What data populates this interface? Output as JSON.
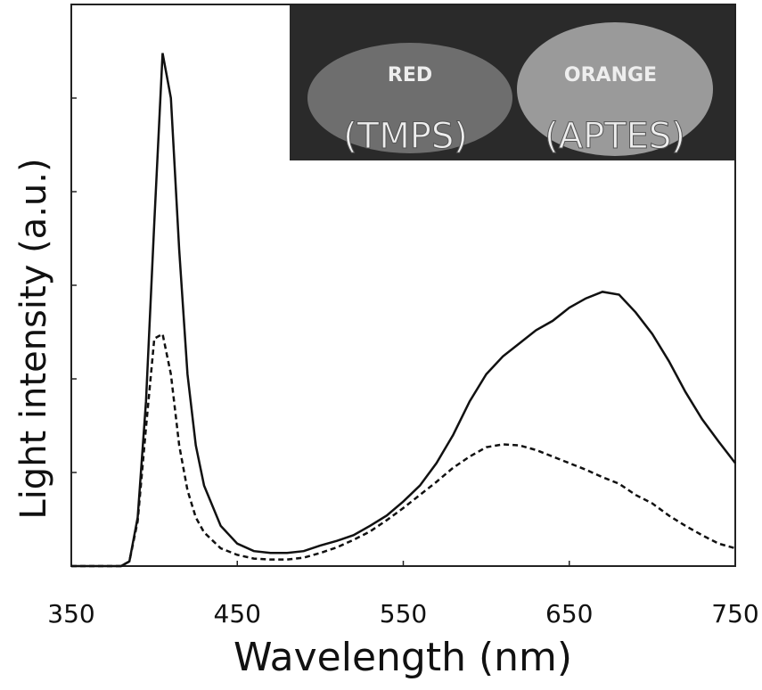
{
  "chart_data": {
    "type": "line",
    "xlabel": "Wavelength (nm)",
    "ylabel": "Light intensity (a.u.)",
    "annotations": [
      "RED",
      "(TMPS)",
      "ORANGE",
      "(APTES)"
    ],
    "x": [
      350,
      380,
      385,
      390,
      395,
      400,
      405,
      410,
      415,
      420,
      425,
      430,
      440,
      450,
      460,
      470,
      480,
      490,
      500,
      510,
      520,
      530,
      540,
      550,
      560,
      570,
      580,
      590,
      600,
      610,
      620,
      630,
      640,
      650,
      660,
      670,
      680,
      690,
      700,
      710,
      720,
      730,
      740,
      750
    ],
    "series": [
      {
        "color": "#111111",
        "dash": false,
        "values": [
          0,
          0,
          0.05,
          0.52,
          1.76,
          3.67,
          5.48,
          5.0,
          3.38,
          2.05,
          1.29,
          0.86,
          0.43,
          0.24,
          0.16,
          0.14,
          0.14,
          0.16,
          0.22,
          0.27,
          0.33,
          0.43,
          0.54,
          0.69,
          0.86,
          1.1,
          1.4,
          1.76,
          2.05,
          2.24,
          2.38,
          2.52,
          2.62,
          2.76,
          2.86,
          2.93,
          2.9,
          2.71,
          2.48,
          2.19,
          1.86,
          1.57,
          1.33,
          1.1
        ]
      },
      {
        "color": "#111111",
        "dash": true,
        "values": [
          0,
          0,
          0.05,
          0.48,
          1.48,
          2.43,
          2.48,
          2.05,
          1.29,
          0.81,
          0.52,
          0.36,
          0.19,
          0.12,
          0.08,
          0.07,
          0.07,
          0.09,
          0.14,
          0.2,
          0.28,
          0.37,
          0.49,
          0.62,
          0.76,
          0.9,
          1.05,
          1.17,
          1.27,
          1.3,
          1.29,
          1.24,
          1.17,
          1.1,
          1.03,
          0.95,
          0.88,
          0.76,
          0.67,
          0.54,
          0.43,
          0.33,
          0.24,
          0.19
        ]
      }
    ],
    "xlim": [
      350,
      750
    ],
    "xticks": [
      350,
      450,
      550,
      650,
      750
    ],
    "ylim": [
      0,
      6
    ],
    "yticks": [
      0,
      1,
      2,
      3,
      4,
      5
    ],
    "grid": false
  }
}
